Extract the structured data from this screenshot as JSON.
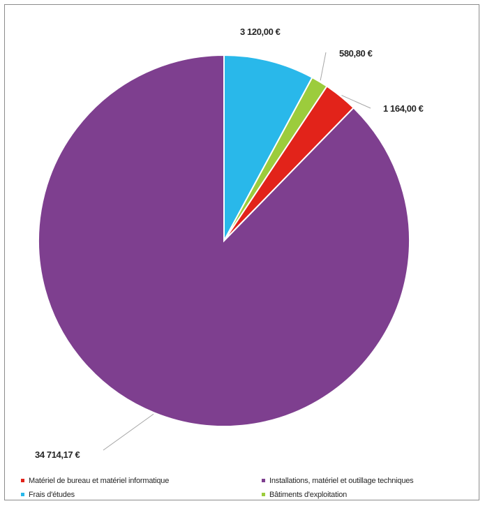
{
  "chart_data": {
    "type": "pie",
    "title": "",
    "start_angle_deg": 0,
    "direction": "clockwise",
    "series": [
      {
        "values": [
          3120.0,
          580.8,
          1164.0,
          34714.17
        ],
        "categories": [
          "Frais d'études",
          "Bâtiments d'exploitation",
          "Matériel de bureau et matériel informatique",
          "Installations, matériel et outillage techniques"
        ],
        "data_labels": [
          "3 120,00 €",
          "580,80 €",
          "1 164,00 €",
          "34 714,17 €"
        ],
        "colors": [
          "#29b8ea",
          "#9ccc3c",
          "#e2231a",
          "#7e3f8f"
        ]
      }
    ],
    "legend": {
      "position": "bottom",
      "items": [
        {
          "label": "Matériel de bureau et matériel informatique",
          "color": "#e2231a"
        },
        {
          "label": "Installations, matériel et outillage techniques",
          "color": "#7e3f8f"
        },
        {
          "label": "Frais d'études",
          "color": "#29b8ea"
        },
        {
          "label": "Bâtiments d'exploitation",
          "color": "#9ccc3c"
        }
      ]
    }
  }
}
